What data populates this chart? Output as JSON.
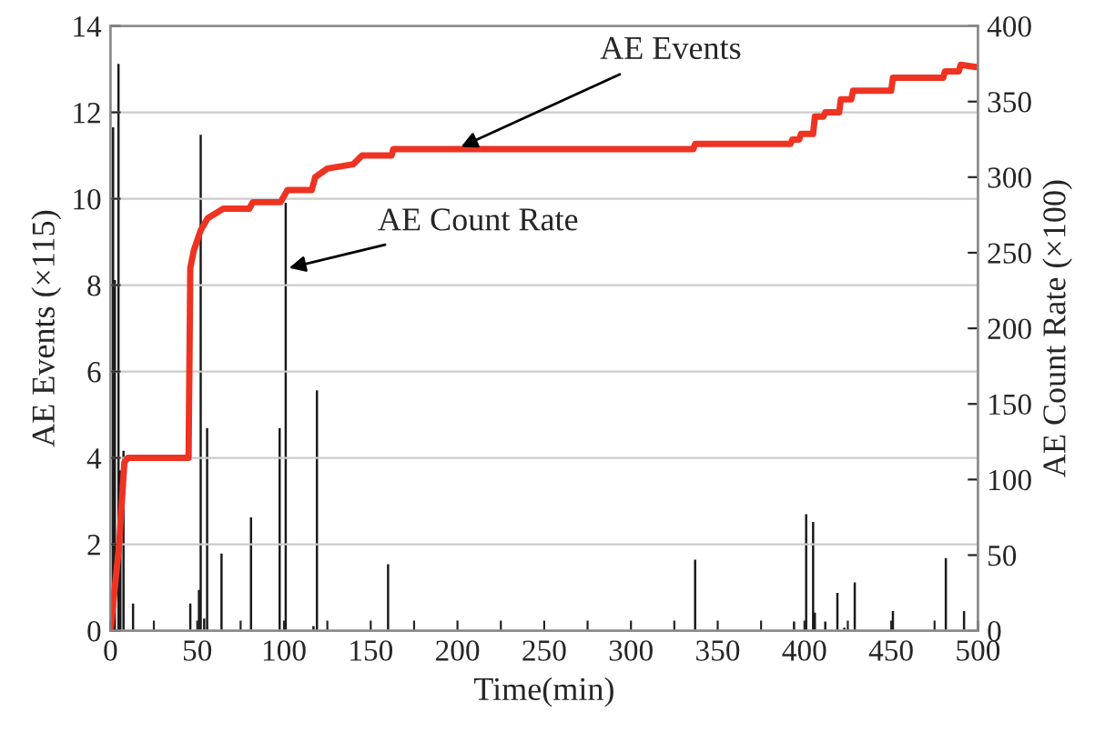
{
  "chart_data": {
    "type": "line",
    "xlabel": "Time(min)",
    "ylabel": "AE Events (×115)",
    "y2label": "AE Count Rate (×100)",
    "xlim": [
      0,
      500
    ],
    "xticks": [
      0,
      {
        "value": 25,
        "label": null
      },
      50,
      {
        "value": 75,
        "label": null
      },
      100,
      {
        "value": 125,
        "label": null
      },
      150,
      {
        "value": 175,
        "label": null
      },
      200,
      {
        "value": 225,
        "label": null
      },
      250,
      {
        "value": 275,
        "label": null
      },
      300,
      {
        "value": 325,
        "label": null
      },
      350,
      {
        "value": 375,
        "label": null
      },
      400,
      {
        "value": 425,
        "label": null
      },
      450,
      {
        "value": 475,
        "label": null
      },
      500
    ],
    "ylim": [
      0,
      14
    ],
    "yticks": [
      0,
      2,
      4,
      6,
      8,
      10,
      12,
      14
    ],
    "y2lim": [
      0,
      400
    ],
    "y2ticks": [
      0,
      50,
      100,
      150,
      200,
      250,
      300,
      350,
      400
    ],
    "grid": "y",
    "legend": false,
    "series": [
      {
        "type": "bar",
        "axis": "y2",
        "color": "#1a1a1a",
        "x": [
          1.5,
          2.5,
          3.5,
          4.6,
          5.7,
          7.5,
          13,
          46,
          51,
          52,
          54,
          55.7,
          64,
          81,
          97.5,
          101,
          117,
          119,
          160,
          337,
          394,
          401,
          405,
          406,
          412,
          419,
          423,
          429,
          451,
          481.5,
          492
        ],
        "values": [
          333,
          232,
          null,
          375,
          106,
          119,
          18,
          18,
          27,
          328,
          8,
          134,
          51,
          75,
          134,
          283,
          3,
          159,
          44,
          47,
          6,
          77,
          72,
          12,
          6,
          25,
          2,
          32,
          13,
          48,
          13
        ]
      },
      {
        "axis": "y",
        "color": "#ee3322",
        "x": [
          0,
          5,
          8,
          10,
          45,
          46,
          48,
          52,
          56,
          65,
          80,
          82,
          98,
          102,
          116,
          118,
          125,
          140,
          145,
          162,
          163,
          336,
          337,
          392,
          393,
          397,
          398,
          405,
          406,
          411,
          412,
          420,
          421,
          427,
          428,
          450,
          451,
          480,
          481,
          489,
          490,
          499
        ],
        "values": [
          0,
          2,
          3.9,
          4.0,
          4.0,
          8.4,
          8.8,
          9.27,
          9.55,
          9.77,
          9.77,
          9.92,
          9.92,
          10.2,
          10.2,
          10.5,
          10.7,
          10.8,
          11.0,
          11.0,
          11.15,
          11.15,
          11.27,
          11.27,
          11.37,
          11.37,
          11.5,
          11.5,
          11.9,
          11.9,
          12.0,
          12.0,
          12.3,
          12.3,
          12.5,
          12.5,
          12.8,
          12.8,
          12.95,
          12.95,
          13.1,
          13.05
        ]
      }
    ],
    "annotations": [
      {
        "text": "AE Events",
        "x": 202,
        "y": 11.2
      },
      {
        "text": "AE Count Rate",
        "x": 103,
        "y": 8.4
      }
    ]
  }
}
